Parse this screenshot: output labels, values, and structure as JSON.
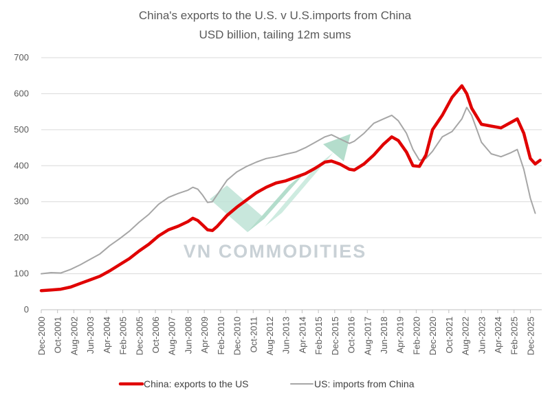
{
  "chart_data": {
    "type": "line",
    "title": "China's exports to the U.S. v U.S.imports from China",
    "subtitle": "USD billion, tailing 12m sums",
    "xlabel": "",
    "ylabel": "",
    "ylim": [
      0,
      700
    ],
    "yticks": [
      0,
      100,
      200,
      300,
      400,
      500,
      600,
      700
    ],
    "xlim": [
      "2000-12",
      "2026-07"
    ],
    "xticks": [
      "Dec-2000",
      "Oct-2001",
      "Aug-2002",
      "Jun-2003",
      "Apr-2004",
      "Feb-2005",
      "Dec-2005",
      "Oct-2006",
      "Aug-2007",
      "Jun-2008",
      "Apr-2009",
      "Feb-2010",
      "Dec-2010",
      "Oct-2011",
      "Aug-2012",
      "Jun-2013",
      "Apr-2014",
      "Feb-2015",
      "Dec-2015",
      "Oct-2016",
      "Aug-2017",
      "Jun-2018",
      "Apr-2019",
      "Feb-2020",
      "Dec-2020",
      "Oct-2021",
      "Aug-2022",
      "Jun-2023",
      "Apr-2024",
      "Feb-2025",
      "Dec-2025"
    ],
    "grid": "horizontal",
    "legend": "bottom",
    "watermark": "VN COMMODITIES",
    "series": [
      {
        "name": "China: exports to the US",
        "color": "#e00000",
        "points": [
          [
            "2000-12",
            53
          ],
          [
            "2001-06",
            55
          ],
          [
            "2001-12",
            57
          ],
          [
            "2002-06",
            63
          ],
          [
            "2002-12",
            73
          ],
          [
            "2003-06",
            83
          ],
          [
            "2003-12",
            93
          ],
          [
            "2004-06",
            108
          ],
          [
            "2004-12",
            125
          ],
          [
            "2005-06",
            142
          ],
          [
            "2005-12",
            163
          ],
          [
            "2006-06",
            182
          ],
          [
            "2006-12",
            205
          ],
          [
            "2007-06",
            222
          ],
          [
            "2007-12",
            232
          ],
          [
            "2008-06",
            245
          ],
          [
            "2008-09",
            254
          ],
          [
            "2008-12",
            248
          ],
          [
            "2009-03",
            235
          ],
          [
            "2009-06",
            222
          ],
          [
            "2009-09",
            220
          ],
          [
            "2009-12",
            232
          ],
          [
            "2010-06",
            262
          ],
          [
            "2010-12",
            285
          ],
          [
            "2011-06",
            305
          ],
          [
            "2011-12",
            325
          ],
          [
            "2012-06",
            340
          ],
          [
            "2012-12",
            352
          ],
          [
            "2013-06",
            358
          ],
          [
            "2013-12",
            368
          ],
          [
            "2014-06",
            378
          ],
          [
            "2014-12",
            393
          ],
          [
            "2015-06",
            410
          ],
          [
            "2015-10",
            413
          ],
          [
            "2016-03",
            405
          ],
          [
            "2016-09",
            390
          ],
          [
            "2016-12",
            388
          ],
          [
            "2017-06",
            405
          ],
          [
            "2017-12",
            430
          ],
          [
            "2018-06",
            460
          ],
          [
            "2018-11",
            480
          ],
          [
            "2019-03",
            470
          ],
          [
            "2019-08",
            438
          ],
          [
            "2019-12",
            400
          ],
          [
            "2020-04",
            398
          ],
          [
            "2020-08",
            430
          ],
          [
            "2020-12",
            500
          ],
          [
            "2021-06",
            540
          ],
          [
            "2021-12",
            590
          ],
          [
            "2022-06",
            622
          ],
          [
            "2022-09",
            600
          ],
          [
            "2022-12",
            560
          ],
          [
            "2023-06",
            515
          ],
          [
            "2023-12",
            510
          ],
          [
            "2024-06",
            505
          ],
          [
            "2024-12",
            520
          ],
          [
            "2025-04",
            530
          ],
          [
            "2025-08",
            490
          ],
          [
            "2025-12",
            420
          ],
          [
            "2026-03",
            405
          ],
          [
            "2026-06",
            415
          ]
        ]
      },
      {
        "name": "US: imports from China",
        "color": "#a6a6a6",
        "points": [
          [
            "2000-12",
            100
          ],
          [
            "2001-06",
            103
          ],
          [
            "2001-12",
            102
          ],
          [
            "2002-06",
            112
          ],
          [
            "2002-12",
            125
          ],
          [
            "2003-06",
            140
          ],
          [
            "2003-12",
            155
          ],
          [
            "2004-06",
            178
          ],
          [
            "2004-12",
            197
          ],
          [
            "2005-06",
            218
          ],
          [
            "2005-12",
            243
          ],
          [
            "2006-06",
            265
          ],
          [
            "2006-12",
            293
          ],
          [
            "2007-06",
            312
          ],
          [
            "2007-12",
            323
          ],
          [
            "2008-06",
            332
          ],
          [
            "2008-09",
            340
          ],
          [
            "2008-12",
            335
          ],
          [
            "2009-03",
            318
          ],
          [
            "2009-06",
            298
          ],
          [
            "2009-09",
            300
          ],
          [
            "2009-12",
            320
          ],
          [
            "2010-06",
            360
          ],
          [
            "2010-12",
            383
          ],
          [
            "2011-06",
            398
          ],
          [
            "2011-12",
            410
          ],
          [
            "2012-06",
            420
          ],
          [
            "2012-12",
            425
          ],
          [
            "2013-06",
            432
          ],
          [
            "2013-12",
            438
          ],
          [
            "2014-06",
            450
          ],
          [
            "2014-12",
            465
          ],
          [
            "2015-06",
            480
          ],
          [
            "2015-10",
            486
          ],
          [
            "2016-03",
            475
          ],
          [
            "2016-09",
            462
          ],
          [
            "2016-12",
            468
          ],
          [
            "2017-06",
            490
          ],
          [
            "2017-12",
            518
          ],
          [
            "2018-06",
            530
          ],
          [
            "2018-11",
            540
          ],
          [
            "2019-03",
            525
          ],
          [
            "2019-08",
            490
          ],
          [
            "2019-12",
            445
          ],
          [
            "2020-04",
            415
          ],
          [
            "2020-08",
            420
          ],
          [
            "2020-12",
            440
          ],
          [
            "2021-06",
            480
          ],
          [
            "2021-12",
            495
          ],
          [
            "2022-06",
            530
          ],
          [
            "2022-09",
            562
          ],
          [
            "2022-12",
            540
          ],
          [
            "2023-06",
            465
          ],
          [
            "2023-12",
            433
          ],
          [
            "2024-06",
            425
          ],
          [
            "2024-12",
            436
          ],
          [
            "2025-04",
            445
          ],
          [
            "2025-08",
            390
          ],
          [
            "2025-12",
            310
          ],
          [
            "2026-03",
            268
          ]
        ]
      }
    ]
  }
}
